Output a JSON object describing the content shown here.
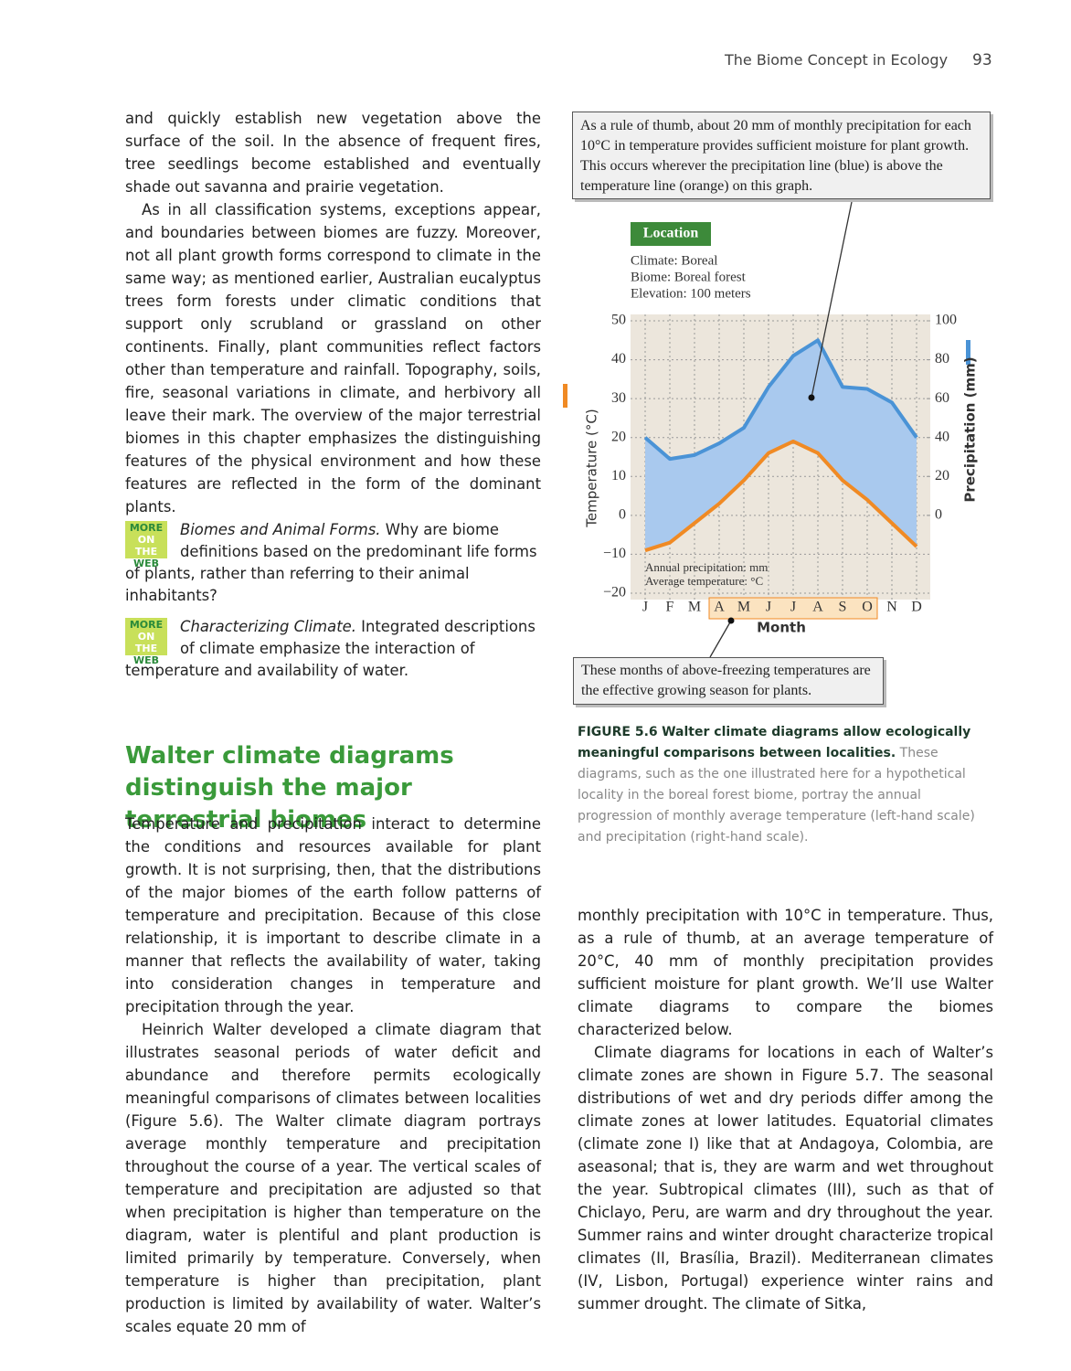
{
  "header": {
    "running_title": "The Biome Concept in Ecology",
    "page_number": "93"
  },
  "left_column": {
    "paragraphs": [
      "and quickly establish new vegetation above the surface of the soil. In the absence of frequent fires, tree seedlings become established and eventually shade out savanna and prairie vegetation.",
      "As in all classification systems, exceptions appear, and boundaries between biomes are fuzzy. Moreover, not all plant growth forms correspond to climate in the same way; as mentioned earlier, Australian eucalyptus trees form forests under climatic conditions that support only scrubland or grassland on other continents. Finally, plant communities reflect factors other than temperature and rainfall. Topography, soils, fire, seasonal variations in climate, and herbivory all leave their mark. The overview of the major terrestrial biomes in this chapter emphasizes the distinguishing features of the physical environment and how these features are reflected in the form of the dominant plants."
    ]
  },
  "more_on_web": [
    {
      "badge": [
        "MORE",
        "ON THE",
        "WEB"
      ],
      "title": "Biomes and Animal Forms.",
      "text": "Why are biome definitions based on the predominant life forms of plants, rather than referring to their animal inhabitants?"
    },
    {
      "badge": [
        "MORE",
        "ON THE",
        "WEB"
      ],
      "title": "Characterizing Climate.",
      "text": "Integrated descriptions of climate emphasize the interaction of temperature and availability of water."
    }
  ],
  "section": {
    "heading": "Walter climate diagrams distinguish the major terrestrial biomes",
    "paragraphs": [
      "Temperature and precipitation interact to determine the conditions and resources available for plant growth. It is not surprising, then, that the distributions of the major biomes of the earth follow patterns of temperature and precipitation. Because of this close relationship, it is important to describe climate in a manner that reflects the availability of water, taking into consideration changes in temperature and precipitation through the year.",
      "Heinrich Walter developed a climate diagram that illustrates seasonal periods of water deficit and abundance and therefore permits ecologically meaningful comparisons of climates between localities (Figure 5.6). The Walter climate diagram portrays average monthly temperature and precipitation throughout the course of a year. The vertical scales of temperature and precipitation are adjusted so that when precipitation is higher than temperature on the diagram, water is plentiful and plant production is limited primarily by temperature. Conversely, when temperature is higher than precipitation, plant production is limited by availability of water. Walter’s scales equate 20 mm of"
    ]
  },
  "right_column": {
    "paragraphs": [
      "monthly precipitation with 10°C in temperature. Thus, as a rule of thumb, at an average temperature of 20°C, 40 mm of monthly precipitation provides sufficient moisture for plant growth. We’ll use Walter climate diagrams to compare the biomes characterized below.",
      "Climate diagrams for locations in each of Walter’s climate zones are shown in Figure 5.7. The seasonal distributions of wet and dry periods differ among the climate zones at lower latitudes. Equatorial climates (climate zone I) like that at Andagoya, Colombia, are aseasonal; that is, they are warm and wet throughout the year. Subtropical climates (III), such as that of Chiclayo, Peru, are warm and dry throughout the year. Summer rains and winter drought characterize tropical climates (II, Brasília, Brazil). Mediterranean climates (IV, Lisbon, Portugal) experience winter rains and summer drought. The climate of Sitka,"
    ]
  },
  "figure": {
    "callout_top": "As a rule of thumb, about 20 mm of monthly precipitation for each 10°C in temperature provides sufficient moisture for plant growth. This occurs wherever the precipitation line (blue) is above the temperature line (orange) on this graph.",
    "location": {
      "label": "Location",
      "lines": [
        "Climate: Boreal",
        "Biome: Boreal forest",
        "Elevation: 100 meters"
      ]
    },
    "callout_bottom": "These months of above-freezing temperatures are the effective growing season for plants.",
    "caption": {
      "label": "FIGURE 5.6",
      "title": "Walter climate diagrams allow ecologically meaningful comparisons between localities.",
      "text": "These diagrams, such as the one illustrated here for a hypothetical locality in the boreal forest biome, portray the annual progression of monthly average temperature (left-hand scale) and precipitation (right-hand scale)."
    }
  },
  "chart_data": {
    "type": "line",
    "xlabel": "Month",
    "ylabel": "Temperature (°C)",
    "y2label": "Precipitation (mm)",
    "categories": [
      "J",
      "F",
      "M",
      "A",
      "M",
      "J",
      "J",
      "A",
      "S",
      "O",
      "N",
      "D"
    ],
    "series": [
      {
        "name": "Average temperature: °C",
        "color": "#f08a24",
        "axis": "y",
        "values": [
          -9,
          -7,
          -2,
          3,
          9,
          16,
          19,
          16,
          9,
          4,
          -2,
          -8
        ]
      },
      {
        "name": "Annual precipitation: mm",
        "color": "#4a93d6",
        "axis": "y2",
        "values": [
          40,
          29,
          31,
          37,
          45,
          66,
          82,
          90,
          66,
          65,
          58,
          40
        ]
      }
    ],
    "ylim": [
      -20,
      50
    ],
    "yticks": [
      {
        "value": -20,
        "label": "−20"
      },
      {
        "value": -10,
        "label": "−10"
      },
      0,
      10,
      20,
      30,
      40,
      50
    ],
    "y2lim": [
      -40,
      100
    ],
    "y2ticks": [
      0,
      20,
      40,
      60,
      80,
      100
    ],
    "grid": true
  }
}
